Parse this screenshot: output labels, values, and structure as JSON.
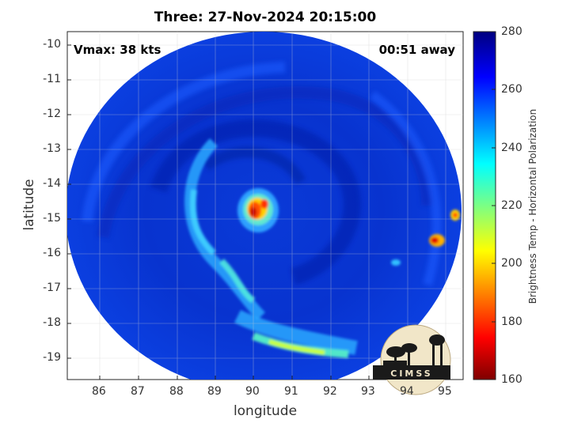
{
  "title": "Three: 27-Nov-2024 20:15:00",
  "vmax_label": "Vmax: 38 kts",
  "away_label": "00:51 away",
  "xlabel": "longitude",
  "ylabel": "latitude",
  "x_ticks": [
    "86",
    "87",
    "88",
    "89",
    "90",
    "91",
    "92",
    "93",
    "94",
    "95"
  ],
  "y_ticks": [
    "-10",
    "-11",
    "-12",
    "-13",
    "-14",
    "-15",
    "-16",
    "-17",
    "-18",
    "-19"
  ],
  "colorbar": {
    "label": "Brightness Temp - Horizontal Polarization",
    "ticks": [
      "280",
      "260",
      "240",
      "220",
      "200",
      "180",
      "160"
    ],
    "min": 160,
    "max": 280,
    "colormap": "jet"
  },
  "logo_text": "CIMSS",
  "chart_data": {
    "type": "heatmap",
    "title": "Three: 27-Nov-2024 20:15:00",
    "xlabel": "longitude",
    "ylabel": "latitude",
    "xlim": [
      85.2,
      95.4
    ],
    "ylim": [
      -19.6,
      -9.6
    ],
    "colorbar_range": [
      160,
      280
    ],
    "colorbar_label": "Brightness Temp - Horizontal Polarization",
    "features": [
      {
        "name": "cyclone core minimum",
        "lon": 90.1,
        "lat": -14.9,
        "value": 175
      },
      {
        "name": "rainband",
        "lon": 91.5,
        "lat": -18.7,
        "value": 225
      },
      {
        "name": "convective cell",
        "lon": 94.7,
        "lat": -15.7,
        "value": 185
      },
      {
        "name": "convective cell",
        "lon": 95.2,
        "lat": -15.0,
        "value": 195
      }
    ]
  }
}
